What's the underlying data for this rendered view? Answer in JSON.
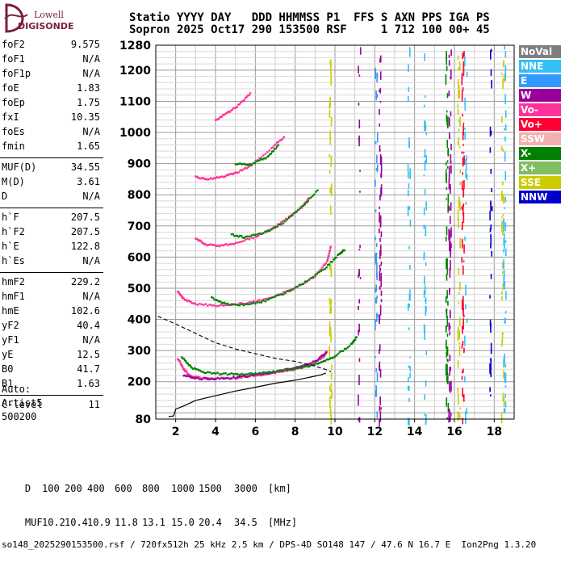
{
  "logo": {
    "line1": "Lowell",
    "line2": "DIGISONDE"
  },
  "header": {
    "row1": "Statio YYYY DAY   DDD HHMMSS P1  FFS S AXN PPS IGA PS",
    "row2": "Sopron 2025 Oct17 290 153500 RSF     1 712 100 00+ 45"
  },
  "params": [
    {
      "name": "foF2",
      "value": "9.575"
    },
    {
      "name": "foF1",
      "value": "N/A"
    },
    {
      "name": "foF1p",
      "value": "N/A"
    },
    {
      "name": "foE",
      "value": "1.83"
    },
    {
      "name": "foEp",
      "value": "1.75"
    },
    {
      "name": "fxI",
      "value": "10.35"
    },
    {
      "name": "foEs",
      "value": "N/A"
    },
    {
      "name": "fmin",
      "value": "1.65"
    },
    {
      "name": "MUF(D)",
      "value": "34.55"
    },
    {
      "name": "M(D)",
      "value": "3.61"
    },
    {
      "name": "D",
      "value": "N/A"
    },
    {
      "name": "h`F",
      "value": "207.5"
    },
    {
      "name": "h`F2",
      "value": "207.5"
    },
    {
      "name": "h`E",
      "value": "122.8"
    },
    {
      "name": "h`Es",
      "value": "N/A"
    },
    {
      "name": "hmF2",
      "value": "229.2"
    },
    {
      "name": "hmF1",
      "value": "N/A"
    },
    {
      "name": "hmE",
      "value": "102.6"
    },
    {
      "name": "yF2",
      "value": "40.4"
    },
    {
      "name": "yF1",
      "value": "N/A"
    },
    {
      "name": "yE",
      "value": "12.5"
    },
    {
      "name": "B0",
      "value": "41.7"
    },
    {
      "name": "B1",
      "value": "1.63"
    },
    {
      "name": "C-level",
      "value": "11"
    }
  ],
  "auto_block": {
    "line1": "Auto:",
    "line2": "Artist5",
    "line3": "500200"
  },
  "legend": [
    {
      "label": "NoVal",
      "color": "#7f7f7f"
    },
    {
      "label": "NNE",
      "color": "#33c0f5"
    },
    {
      "label": "E",
      "color": "#3399ff"
    },
    {
      "label": "W",
      "color": "#990099"
    },
    {
      "label": "Vo-",
      "color": "#ff3399"
    },
    {
      "label": "Vo+",
      "color": "#ff0033"
    },
    {
      "label": "SSW",
      "color": "#f2b0b0"
    },
    {
      "label": "X-",
      "color": "#008000"
    },
    {
      "label": "X+",
      "color": "#80bf60"
    },
    {
      "label": "SSE",
      "color": "#cccc00"
    },
    {
      "label": "NNW",
      "color": "#0000cc"
    }
  ],
  "chart_data": {
    "type": "scatter",
    "xlim": [
      1.0,
      19.0
    ],
    "ylim": [
      80,
      1280
    ],
    "x_ticks": [
      2,
      4,
      6,
      8,
      10,
      12,
      14,
      16,
      18
    ],
    "y_ticks": [
      80,
      200,
      300,
      400,
      500,
      600,
      700,
      800,
      900,
      1000,
      1100,
      1200,
      1280
    ],
    "grid": true,
    "series": [
      {
        "name": "Vo-",
        "color": "#ff3399",
        "points": [
          [
            2.1,
            275
          ],
          [
            2.4,
            240
          ],
          [
            2.7,
            220
          ],
          [
            3.2,
            212
          ],
          [
            4,
            210
          ],
          [
            5,
            212
          ],
          [
            6,
            220
          ],
          [
            7,
            230
          ],
          [
            8,
            240
          ],
          [
            8.8,
            255
          ],
          [
            9.4,
            280
          ],
          [
            9.6,
            300
          ]
        ]
      },
      {
        "name": "W",
        "color": "#990099",
        "points": [
          [
            2.4,
            220
          ],
          [
            3,
            210
          ],
          [
            4,
            210
          ],
          [
            5,
            214
          ],
          [
            6,
            222
          ],
          [
            7,
            232
          ],
          [
            8,
            245
          ],
          [
            9,
            265
          ],
          [
            9.6,
            295
          ]
        ]
      },
      {
        "name": "X-",
        "color": "#008000",
        "points": [
          [
            2.3,
            280
          ],
          [
            2.8,
            245
          ],
          [
            3.5,
            230
          ],
          [
            4.5,
            225
          ],
          [
            5.5,
            225
          ],
          [
            6.5,
            230
          ],
          [
            7.5,
            238
          ],
          [
            8.5,
            248
          ],
          [
            9.3,
            262
          ],
          [
            10,
            282
          ],
          [
            10.8,
            320
          ],
          [
            11.1,
            345
          ]
        ]
      },
      {
        "name": "Vo-",
        "color": "#ff3399",
        "points": [
          [
            2.1,
            490
          ],
          [
            2.4,
            465
          ],
          [
            3,
            450
          ],
          [
            4,
            445
          ],
          [
            5,
            448
          ],
          [
            6,
            458
          ],
          [
            7,
            475
          ],
          [
            8,
            500
          ],
          [
            9,
            540
          ],
          [
            9.6,
            585
          ],
          [
            9.8,
            640
          ]
        ]
      },
      {
        "name": "X-",
        "color": "#008000",
        "points": [
          [
            3.8,
            470
          ],
          [
            4.5,
            450
          ],
          [
            5.5,
            447
          ],
          [
            6.5,
            460
          ],
          [
            7.5,
            485
          ],
          [
            8.5,
            520
          ],
          [
            9.5,
            565
          ],
          [
            10.2,
            610
          ],
          [
            10.5,
            625
          ]
        ]
      },
      {
        "name": "Vo-",
        "color": "#ff3399",
        "points": [
          [
            3,
            660
          ],
          [
            3.5,
            640
          ],
          [
            4.2,
            637
          ],
          [
            5,
            645
          ],
          [
            6,
            665
          ],
          [
            6.8,
            690
          ],
          [
            7.6,
            725
          ],
          [
            8.4,
            765
          ],
          [
            8.7,
            790
          ]
        ]
      },
      {
        "name": "X-",
        "color": "#008000",
        "points": [
          [
            4.8,
            672
          ],
          [
            5.5,
            663
          ],
          [
            6.5,
            680
          ],
          [
            7.5,
            715
          ],
          [
            8.4,
            765
          ],
          [
            9.2,
            820
          ]
        ]
      },
      {
        "name": "Vo-",
        "color": "#ff3399",
        "points": [
          [
            3,
            858
          ],
          [
            3.6,
            850
          ],
          [
            4.4,
            858
          ],
          [
            5,
            870
          ],
          [
            5.8,
            895
          ],
          [
            6.8,
            950
          ],
          [
            7.5,
            990
          ]
        ]
      },
      {
        "name": "X-",
        "color": "#008000",
        "points": [
          [
            5,
            900
          ],
          [
            5.8,
            898
          ],
          [
            6.6,
            922
          ],
          [
            7.2,
            962
          ]
        ]
      },
      {
        "name": "Vo-",
        "color": "#ff3399",
        "points": [
          [
            4,
            1040
          ],
          [
            4.6,
            1063
          ],
          [
            5.2,
            1090
          ],
          [
            5.8,
            1130
          ]
        ]
      }
    ],
    "profile": [
      [
        1.65,
        88
      ],
      [
        1.9,
        90
      ],
      [
        2.0,
        112
      ],
      [
        2.4,
        122
      ],
      [
        3,
        140
      ],
      [
        4,
        155
      ],
      [
        5,
        170
      ],
      [
        6,
        182
      ],
      [
        7,
        195
      ],
      [
        8,
        205
      ],
      [
        8.8,
        215
      ],
      [
        9.3,
        222
      ],
      [
        9.55,
        228
      ]
    ],
    "dashed_profile": [
      [
        1.1,
        410
      ],
      [
        2,
        385
      ],
      [
        3,
        355
      ],
      [
        4,
        325
      ],
      [
        5,
        305
      ],
      [
        6,
        290
      ],
      [
        7,
        275
      ],
      [
        8,
        265
      ],
      [
        9,
        250
      ],
      [
        9.5,
        240
      ],
      [
        9.8,
        232
      ]
    ]
  },
  "footer": {
    "distance_label": "D",
    "distances": [
      "100",
      "200",
      "400",
      "600",
      "800",
      "1000",
      "1500",
      "3000",
      "[km]"
    ],
    "muf_label": "MUF",
    "mufs": [
      "10.2",
      "10.4",
      "10.9",
      "11.8",
      "13.1",
      "15.0",
      "20.4",
      "34.5",
      "[MHz]"
    ],
    "source": "so148_2025290153500.rsf / 720fx512h 25 kHz 2.5 km / DPS-4D SO148 147 / 47.6 N 16.7 E  Ion2Png 1.3.20"
  }
}
